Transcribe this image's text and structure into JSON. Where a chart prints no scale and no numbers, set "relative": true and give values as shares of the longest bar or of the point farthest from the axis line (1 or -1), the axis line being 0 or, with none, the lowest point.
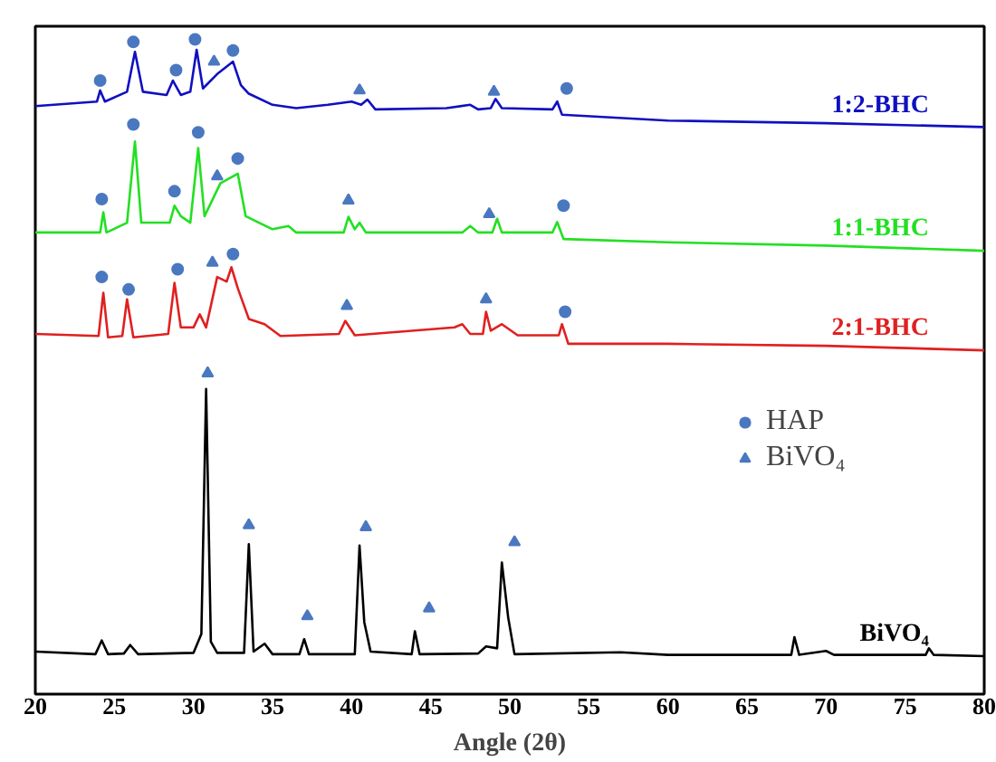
{
  "chart_data": {
    "type": "line",
    "relative": true,
    "xlabel": "Angle (2θ)",
    "xlim": [
      20,
      80
    ],
    "xticks": [
      20,
      25,
      30,
      35,
      40,
      45,
      50,
      55,
      60,
      65,
      70,
      75,
      80
    ],
    "legend": "right",
    "grid": false,
    "series": [
      {
        "name": "BiVO₄",
        "color": "#000000",
        "x": [
          20,
          23.8,
          24.2,
          24.6,
          25.6,
          26,
          26.5,
          30,
          30.5,
          30.8,
          31.1,
          31.5,
          33.2,
          33.5,
          33.8,
          34.5,
          35,
          36.7,
          37,
          37.3,
          40.2,
          40.5,
          40.8,
          41.2,
          43.8,
          44,
          44.3,
          48,
          48.5,
          49.2,
          49.5,
          49.9,
          50.3,
          57,
          60,
          67.8,
          68,
          68.3,
          70,
          70.5,
          76.3,
          76.5,
          76.8,
          80
        ],
        "values": [
          0.065,
          0.061,
          0.082,
          0.061,
          0.062,
          0.075,
          0.061,
          0.063,
          0.092,
          0.466,
          0.08,
          0.063,
          0.063,
          0.229,
          0.065,
          0.077,
          0.061,
          0.061,
          0.084,
          0.061,
          0.061,
          0.227,
          0.11,
          0.065,
          0.061,
          0.096,
          0.061,
          0.062,
          0.073,
          0.07,
          0.201,
          0.117,
          0.061,
          0.064,
          0.06,
          0.06,
          0.087,
          0.06,
          0.066,
          0.06,
          0.06,
          0.07,
          0.06,
          0.058
        ]
      },
      {
        "name": "2:1-BHC",
        "color": "#e02020",
        "x": [
          20,
          24,
          24.3,
          24.6,
          25.5,
          25.8,
          26.2,
          28.4,
          28.8,
          29.2,
          30,
          30.4,
          30.8,
          31.5,
          32.1,
          32.4,
          32.8,
          33.5,
          34.5,
          35.5,
          39.2,
          39.6,
          40.2,
          46.5,
          47,
          47.5,
          48.3,
          48.5,
          48.8,
          49.5,
          50.5,
          53.1,
          53.3,
          53.7,
          60,
          70,
          80
        ],
        "values": [
          0.55,
          0.547,
          0.613,
          0.545,
          0.547,
          0.603,
          0.545,
          0.55,
          0.628,
          0.56,
          0.56,
          0.58,
          0.56,
          0.637,
          0.63,
          0.652,
          0.62,
          0.573,
          0.565,
          0.547,
          0.55,
          0.57,
          0.548,
          0.56,
          0.565,
          0.55,
          0.55,
          0.584,
          0.555,
          0.565,
          0.548,
          0.548,
          0.565,
          0.535,
          0.535,
          0.532,
          0.525
        ]
      },
      {
        "name": "1:1-BHC",
        "color": "#22e022",
        "x": [
          20,
          24.1,
          24.3,
          24.5,
          25.8,
          26.3,
          26.7,
          28.5,
          28.8,
          29.2,
          29.8,
          30.3,
          30.7,
          31.7,
          32.8,
          33.3,
          35,
          36,
          36.5,
          39.5,
          39.8,
          40.2,
          40.5,
          40.9,
          47,
          47.5,
          48,
          48.9,
          49.2,
          49.5,
          52.7,
          53,
          53.4,
          60,
          70,
          80
        ],
        "values": [
          0.705,
          0.705,
          0.736,
          0.705,
          0.72,
          0.844,
          0.72,
          0.72,
          0.746,
          0.73,
          0.72,
          0.834,
          0.73,
          0.78,
          0.795,
          0.73,
          0.71,
          0.715,
          0.705,
          0.705,
          0.729,
          0.71,
          0.72,
          0.705,
          0.705,
          0.715,
          0.705,
          0.705,
          0.726,
          0.705,
          0.705,
          0.721,
          0.695,
          0.69,
          0.685,
          0.677
        ]
      },
      {
        "name": "1:2-BHC",
        "color": "#1010c0",
        "x": [
          20,
          23.9,
          24.1,
          24.4,
          25.8,
          26.3,
          26.8,
          28.3,
          28.7,
          29.2,
          29.8,
          30.2,
          30.6,
          31.5,
          32.5,
          33,
          33.5,
          35,
          36.5,
          38.5,
          40,
          40.6,
          41,
          41.5,
          46,
          47.5,
          48,
          48.8,
          49.1,
          49.5,
          52.7,
          53,
          53.3,
          60,
          70,
          80
        ],
        "values": [
          0.898,
          0.905,
          0.922,
          0.905,
          0.92,
          0.981,
          0.92,
          0.915,
          0.937,
          0.915,
          0.92,
          0.984,
          0.925,
          0.947,
          0.966,
          0.93,
          0.917,
          0.9,
          0.895,
          0.9,
          0.905,
          0.9,
          0.908,
          0.893,
          0.895,
          0.9,
          0.893,
          0.895,
          0.909,
          0.895,
          0.893,
          0.905,
          0.885,
          0.876,
          0.872,
          0.866
        ]
      },
      {
        "name": "HAP",
        "type": "scatter",
        "marker": "circle",
        "color": "#4a78c0",
        "x": [
          24.2,
          25.9,
          29,
          32.5,
          53.5,
          24.2,
          26.2,
          28.8,
          30.3,
          32.8,
          53.4,
          24.1,
          26.2,
          28.9,
          30.1,
          32.5,
          53.6
        ],
        "values": [
          0.637,
          0.618,
          0.649,
          0.672,
          0.584,
          0.756,
          0.87,
          0.768,
          0.858,
          0.818,
          0.746,
          0.937,
          0.996,
          0.953,
          1.0,
          0.983,
          0.925
        ]
      },
      {
        "name": "BiVO₄",
        "type": "scatter",
        "marker": "triangle",
        "color": "#4a78c0",
        "x": [
          30.9,
          33.5,
          37.2,
          40.9,
          44.9,
          50.3,
          31.2,
          39.7,
          48.5,
          31.5,
          39.8,
          48.7,
          31.3,
          40.5,
          49
        ],
        "values": [
          0.49,
          0.258,
          0.119,
          0.255,
          0.131,
          0.232,
          0.659,
          0.593,
          0.603,
          0.791,
          0.754,
          0.733,
          0.966,
          0.922,
          0.92
        ]
      }
    ]
  }
}
